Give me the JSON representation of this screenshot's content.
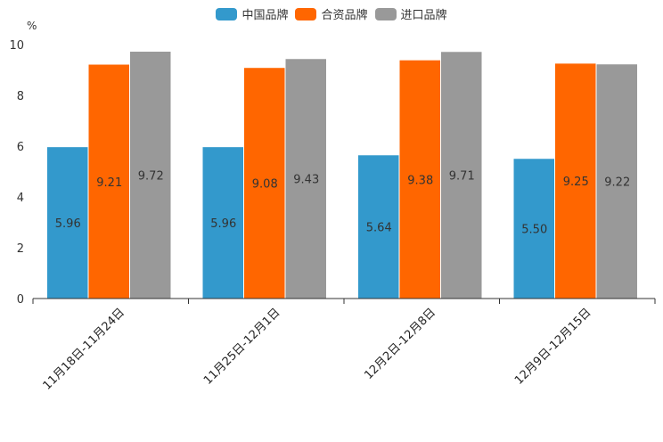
{
  "chart_data": {
    "type": "bar",
    "title": "",
    "xlabel": "",
    "ylabel": "%",
    "ylim": [
      0,
      10
    ],
    "yticks": [
      "0",
      "2",
      "4",
      "6",
      "8",
      "10"
    ],
    "categories": [
      "11月18日-11月24日",
      "11月25日-12月1日",
      "12月2日-12月8日",
      "12月9日-12月15日"
    ],
    "series": [
      {
        "name": "中国品牌",
        "color": "#3399cc",
        "values": [
          5.96,
          5.96,
          5.64,
          5.5
        ],
        "labels": [
          "5.96",
          "5.96",
          "5.64",
          "5.50"
        ]
      },
      {
        "name": "合资品牌",
        "color": "#ff6600",
        "values": [
          9.21,
          9.08,
          9.38,
          9.25
        ],
        "labels": [
          "9.21",
          "9.08",
          "9.38",
          "9.25"
        ]
      },
      {
        "name": "进口品牌",
        "color": "#999999",
        "values": [
          9.72,
          9.43,
          9.71,
          9.22
        ],
        "labels": [
          "9.72",
          "9.43",
          "9.71",
          "9.22"
        ]
      }
    ],
    "legend_position": "top-center",
    "grid": false
  }
}
